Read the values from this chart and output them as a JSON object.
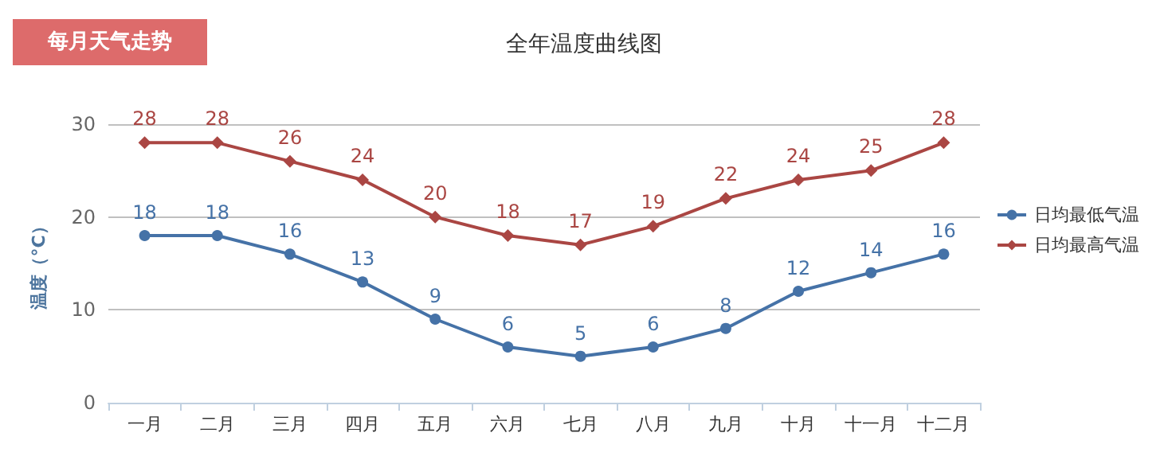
{
  "chart_data": {
    "type": "line",
    "title": "全年温度曲线图",
    "annotations": [
      "每月天气走势"
    ],
    "ylabel": "温度（°C）",
    "categories": [
      "一月",
      "二月",
      "三月",
      "四月",
      "五月",
      "六月",
      "七月",
      "八月",
      "九月",
      "十月",
      "十一月",
      "十二月"
    ],
    "series": [
      {
        "name": "日均最低气温",
        "color": "#4572a7",
        "marker": "circle",
        "values": [
          18,
          18,
          16,
          13,
          9,
          6,
          5,
          6,
          8,
          12,
          14,
          16
        ]
      },
      {
        "name": "日均最高气温",
        "color": "#aa4643",
        "marker": "diamond",
        "values": [
          28,
          28,
          26,
          24,
          20,
          18,
          17,
          19,
          22,
          24,
          25,
          28
        ]
      }
    ],
    "ylim": [
      0,
      30
    ],
    "yticks": [
      0,
      10,
      20,
      30
    ],
    "grid": "y",
    "legend": "right",
    "data_labels": true
  }
}
